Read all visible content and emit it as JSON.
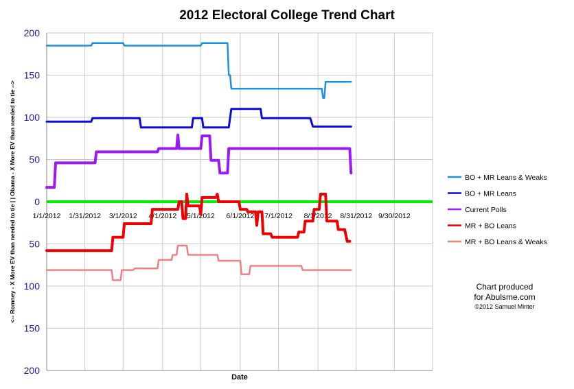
{
  "chart_data": {
    "type": "line",
    "title": "2012 Electoral College Trend Chart",
    "xlabel": "Date",
    "ylabel": "<-- Romney - X More EV than needed to tie | | Obama - X More EV than needed to tie -->",
    "x_range": [
      "2012-01-01",
      "2012-10-30"
    ],
    "x_ticks": [
      "1/1/2012",
      "1/31/2012",
      "3/1/2012",
      "4/1/2012",
      "5/1/2012",
      "6/1/2012",
      "7/1/2012",
      "8/1/2012",
      "8/31/2012",
      "9/30/2012"
    ],
    "y_range": [
      -200,
      200
    ],
    "y_ticks": [
      200,
      150,
      100,
      50,
      0,
      50,
      100,
      150,
      200
    ],
    "grid": true,
    "legend_position": "right",
    "zero_line_color": "#00ee00",
    "series": [
      {
        "name": "BO + MR Leans & Weaks",
        "color": "#1a90e0",
        "points": [
          [
            "2012-01-01",
            185
          ],
          [
            "2012-02-05",
            185
          ],
          [
            "2012-02-06",
            188
          ],
          [
            "2012-03-01",
            188
          ],
          [
            "2012-03-02",
            185
          ],
          [
            "2012-05-01",
            185
          ],
          [
            "2012-05-02",
            188
          ],
          [
            "2012-05-22",
            188
          ],
          [
            "2012-05-23",
            150
          ],
          [
            "2012-05-24",
            150
          ],
          [
            "2012-05-25",
            134
          ],
          [
            "2012-08-04",
            134
          ],
          [
            "2012-08-05",
            123
          ],
          [
            "2012-08-06",
            123
          ],
          [
            "2012-08-07",
            142
          ],
          [
            "2012-08-27",
            142
          ]
        ]
      },
      {
        "name": "BO + MR Leans",
        "color": "#0a0ae0",
        "points": [
          [
            "2012-01-01",
            95
          ],
          [
            "2012-02-05",
            95
          ],
          [
            "2012-02-06",
            99
          ],
          [
            "2012-03-14",
            99
          ],
          [
            "2012-03-15",
            88
          ],
          [
            "2012-04-24",
            88
          ],
          [
            "2012-04-25",
            99
          ],
          [
            "2012-05-02",
            99
          ],
          [
            "2012-05-03",
            88
          ],
          [
            "2012-05-23",
            88
          ],
          [
            "2012-05-25",
            110
          ],
          [
            "2012-06-17",
            110
          ],
          [
            "2012-06-18",
            99
          ],
          [
            "2012-07-26",
            99
          ],
          [
            "2012-07-28",
            89
          ],
          [
            "2012-08-27",
            89
          ]
        ]
      },
      {
        "name": "Current Polls",
        "color": "#9a1af5",
        "points": [
          [
            "2012-01-01",
            17
          ],
          [
            "2012-01-07",
            17
          ],
          [
            "2012-01-08",
            46
          ],
          [
            "2012-02-08",
            46
          ],
          [
            "2012-02-09",
            59
          ],
          [
            "2012-03-28",
            59
          ],
          [
            "2012-03-29",
            63
          ],
          [
            "2012-04-12",
            63
          ],
          [
            "2012-04-13",
            79
          ],
          [
            "2012-04-14",
            63
          ],
          [
            "2012-05-01",
            63
          ],
          [
            "2012-05-02",
            78
          ],
          [
            "2012-05-08",
            78
          ],
          [
            "2012-05-09",
            49
          ],
          [
            "2012-05-15",
            49
          ],
          [
            "2012-05-16",
            34
          ],
          [
            "2012-05-22",
            34
          ],
          [
            "2012-05-23",
            63
          ],
          [
            "2012-08-26",
            63
          ],
          [
            "2012-08-27",
            34
          ]
        ]
      },
      {
        "name": "MR + BO Leans",
        "color": "#ee0000",
        "points": [
          [
            "2012-01-01",
            -58
          ],
          [
            "2012-02-21",
            -58
          ],
          [
            "2012-02-22",
            -42
          ],
          [
            "2012-03-01",
            -42
          ],
          [
            "2012-03-02",
            -26
          ],
          [
            "2012-03-23",
            -26
          ],
          [
            "2012-03-24",
            -9
          ],
          [
            "2012-04-13",
            -9
          ],
          [
            "2012-04-14",
            0
          ],
          [
            "2012-04-16",
            0
          ],
          [
            "2012-04-17",
            -20
          ],
          [
            "2012-04-19",
            -20
          ],
          [
            "2012-04-20",
            9
          ],
          [
            "2012-04-21",
            -5
          ],
          [
            "2012-04-30",
            -5
          ],
          [
            "2012-05-01",
            -15
          ],
          [
            "2012-05-02",
            5
          ],
          [
            "2012-05-13",
            5
          ],
          [
            "2012-05-14",
            9
          ],
          [
            "2012-05-15",
            0
          ],
          [
            "2012-05-31",
            0
          ],
          [
            "2012-06-01",
            -9
          ],
          [
            "2012-06-06",
            -9
          ],
          [
            "2012-06-07",
            -12
          ],
          [
            "2012-06-13",
            -12
          ],
          [
            "2012-06-14",
            -28
          ],
          [
            "2012-06-15",
            -12
          ],
          [
            "2012-06-18",
            -12
          ],
          [
            "2012-06-19",
            -38
          ],
          [
            "2012-06-25",
            -38
          ],
          [
            "2012-06-26",
            -42
          ],
          [
            "2012-07-16",
            -42
          ],
          [
            "2012-07-17",
            -36
          ],
          [
            "2012-07-21",
            -36
          ],
          [
            "2012-07-22",
            -23
          ],
          [
            "2012-07-28",
            -23
          ],
          [
            "2012-07-29",
            -9
          ],
          [
            "2012-08-02",
            -9
          ],
          [
            "2012-08-03",
            9
          ],
          [
            "2012-08-07",
            9
          ],
          [
            "2012-08-08",
            -23
          ],
          [
            "2012-08-16",
            -23
          ],
          [
            "2012-08-17",
            -33
          ],
          [
            "2012-08-22",
            -33
          ],
          [
            "2012-08-24",
            -47
          ],
          [
            "2012-08-26",
            -47
          ]
        ]
      },
      {
        "name": "MR + BO Leans & Weaks",
        "color": "#f08080",
        "points": [
          [
            "2012-01-01",
            -81
          ],
          [
            "2012-02-21",
            -81
          ],
          [
            "2012-02-22",
            -93
          ],
          [
            "2012-02-28",
            -93
          ],
          [
            "2012-02-29",
            -81
          ],
          [
            "2012-03-09",
            -81
          ],
          [
            "2012-03-10",
            -79
          ],
          [
            "2012-03-28",
            -79
          ],
          [
            "2012-03-29",
            -69
          ],
          [
            "2012-04-08",
            -69
          ],
          [
            "2012-04-09",
            -63
          ],
          [
            "2012-04-12",
            -63
          ],
          [
            "2012-04-13",
            -52
          ],
          [
            "2012-04-20",
            -52
          ],
          [
            "2012-04-21",
            -63
          ],
          [
            "2012-05-14",
            -63
          ],
          [
            "2012-05-15",
            -70
          ],
          [
            "2012-06-01",
            -70
          ],
          [
            "2012-06-02",
            -86
          ],
          [
            "2012-06-08",
            -86
          ],
          [
            "2012-06-09",
            -76
          ],
          [
            "2012-07-19",
            -76
          ],
          [
            "2012-07-20",
            -81
          ],
          [
            "2012-08-27",
            -81
          ]
        ]
      }
    ]
  },
  "credit": {
    "line1": "Chart produced",
    "line2": "for Abulsme.com",
    "line3": "©2012 Samuel Minter"
  }
}
